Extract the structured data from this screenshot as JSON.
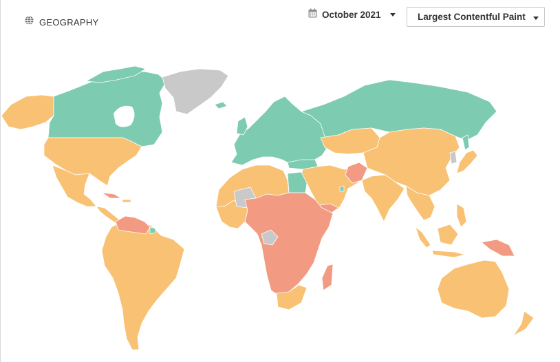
{
  "header": {
    "title": "GEOGRAPHY",
    "title_icon": "globe-icon",
    "date_filter": {
      "label": "October 2021",
      "icon": "calendar-icon"
    },
    "metric_select": {
      "value": "Largest Contentful Paint"
    }
  },
  "legend_colors": {
    "good": "#7dcbb0",
    "needs_improvement": "#f8c173",
    "poor": "#f29b82",
    "no_data": "#c9c9c9"
  }
}
